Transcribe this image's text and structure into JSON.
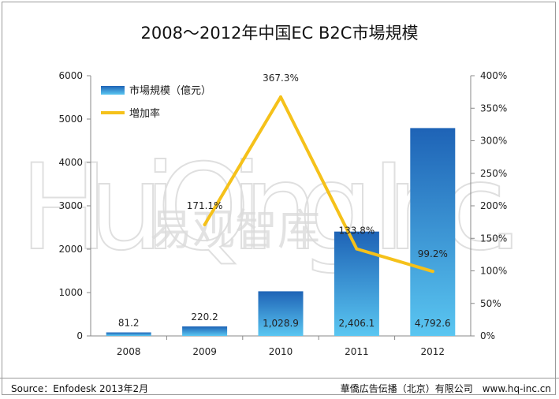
{
  "title": "2008～2012年中国EC B2C市場規模",
  "source": "Source：Enfodesk 2013年2月",
  "credit": "華僑広告伝播（北京）有限公司　www.hq-inc.cn",
  "watermark": "HuiQing Inc. 易观智库",
  "colors": {
    "bar_dark": "#1e63b6",
    "bar_light": "#58c2ef",
    "line": "#f5c11a"
  },
  "chart_data": {
    "type": "bar",
    "categories": [
      "2008",
      "2009",
      "2010",
      "2011",
      "2012"
    ],
    "series": [
      {
        "name": "市場規模（億元）",
        "type": "bar",
        "axis": "left",
        "values": [
          81.2,
          220.2,
          1028.9,
          2406.1,
          4792.6
        ],
        "labels": [
          "81.2",
          "220.2",
          "1,028.9",
          "2,406.1",
          "4,792.6"
        ]
      },
      {
        "name": "増加率",
        "type": "line",
        "axis": "right",
        "x": [
          "2009",
          "2010",
          "2011",
          "2012"
        ],
        "values": [
          171.1,
          367.3,
          133.8,
          99.2
        ],
        "labels": [
          "171.1%",
          "367.3%",
          "133.8%",
          "99.2%"
        ]
      }
    ],
    "left_axis": {
      "min": 0,
      "max": 6000,
      "ticks": [
        "0",
        "1000",
        "2000",
        "3000",
        "4000",
        "5000",
        "6000"
      ]
    },
    "right_axis": {
      "min": 0,
      "max": 400,
      "ticks": [
        "0%",
        "50%",
        "100%",
        "150%",
        "200%",
        "250%",
        "300%",
        "350%",
        "400%"
      ]
    },
    "legend": "top-left",
    "grid": false
  }
}
